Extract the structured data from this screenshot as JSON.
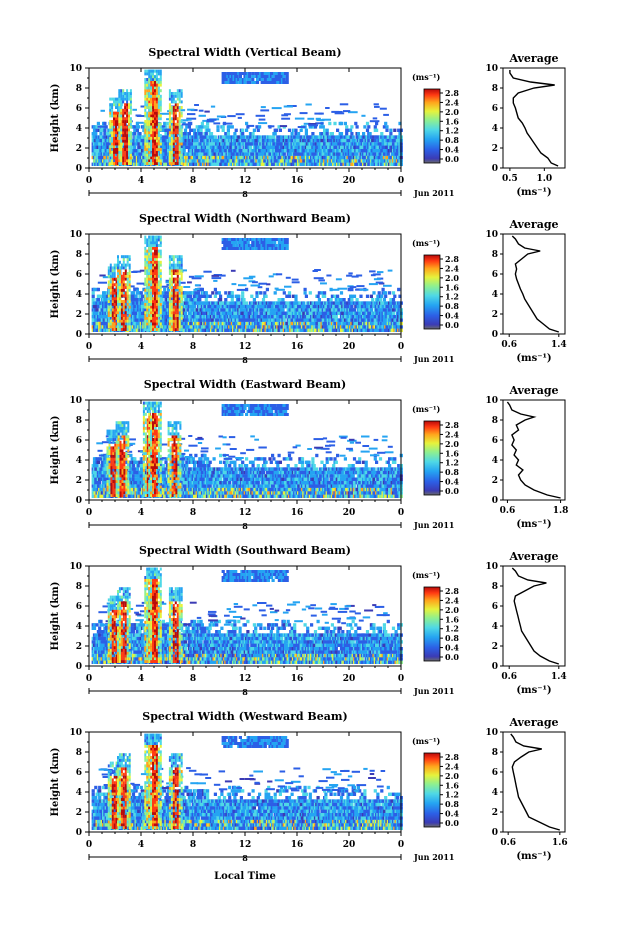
{
  "figure": {
    "common_xlabel": "Local Time",
    "date_label": "Jun 2011",
    "x_bar_label": "8",
    "colorbar_unit": "(ms⁻¹)",
    "colorbar_ticks": [
      "2.8",
      "2.4",
      "2.0",
      "1.6",
      "1.2",
      "0.8",
      "0.4",
      "0.0"
    ],
    "profile_title": "Average",
    "profile_xlabel": "(ms⁻¹)",
    "ylabel": "Height (km)"
  },
  "chart_data": [
    {
      "type": "heatmap",
      "title": "Spectral Width (Vertical Beam)",
      "xlabel": "Local Time",
      "ylabel": "Height (km)",
      "x_ticks": [
        "0",
        "4",
        "8",
        "12",
        "16",
        "20",
        "0"
      ],
      "y_ticks": [
        "0",
        "2",
        "4",
        "6",
        "8",
        "10"
      ],
      "xlim": [
        0,
        24
      ],
      "ylim": [
        0,
        10
      ],
      "zlim": [
        0.0,
        3.0
      ],
      "colorbar_label": "(ms⁻¹)",
      "colorbar_ticks": [
        0.0,
        0.4,
        0.8,
        1.2,
        1.6,
        2.0,
        2.4,
        2.8
      ],
      "convective_columns_hours": [
        2.0,
        2.7,
        4.7,
        5.0,
        6.6
      ],
      "profile": {
        "title": "Average",
        "xlabel": "(ms⁻¹)",
        "x_ticks": [
          "0.5",
          "1.0"
        ],
        "xlim": [
          0.4,
          1.3
        ],
        "height_km": [
          0.2,
          0.5,
          1.0,
          1.5,
          2.0,
          2.5,
          3.0,
          3.5,
          4.0,
          4.5,
          5.0,
          5.5,
          6.0,
          6.5,
          7.0,
          7.5,
          8.0,
          8.3,
          8.6,
          9.0,
          9.5,
          9.8
        ],
        "width": [
          1.2,
          1.1,
          1.05,
          0.95,
          0.9,
          0.85,
          0.8,
          0.75,
          0.72,
          0.68,
          0.62,
          0.6,
          0.58,
          0.55,
          0.55,
          0.62,
          0.85,
          1.15,
          0.8,
          0.55,
          0.5,
          0.5
        ]
      }
    },
    {
      "type": "heatmap",
      "title": "Spectral Width (Northward Beam)",
      "xlabel": "Local Time",
      "ylabel": "Height (km)",
      "x_ticks": [
        "0",
        "4",
        "8",
        "12",
        "16",
        "20",
        "0"
      ],
      "y_ticks": [
        "0",
        "2",
        "4",
        "6",
        "8",
        "10"
      ],
      "xlim": [
        0,
        24
      ],
      "ylim": [
        0,
        10
      ],
      "zlim": [
        0.0,
        3.0
      ],
      "colorbar_label": "(ms⁻¹)",
      "colorbar_ticks": [
        0.0,
        0.4,
        0.8,
        1.2,
        1.6,
        2.0,
        2.4,
        2.8
      ],
      "convective_columns_hours": [
        1.9,
        2.6,
        4.7,
        5.0,
        6.6
      ],
      "profile": {
        "title": "Average",
        "xlabel": "(ms⁻¹)",
        "x_ticks": [
          "0.6",
          "1.4"
        ],
        "xlim": [
          0.5,
          1.5
        ],
        "height_km": [
          0.2,
          0.5,
          1.0,
          1.5,
          2.0,
          2.5,
          3.0,
          3.5,
          4.0,
          4.5,
          5.0,
          5.5,
          6.0,
          6.5,
          7.0,
          7.5,
          8.0,
          8.3,
          8.6,
          9.0,
          9.5,
          9.8
        ],
        "width": [
          1.4,
          1.25,
          1.15,
          1.05,
          1.0,
          0.95,
          0.9,
          0.85,
          0.82,
          0.78,
          0.75,
          0.72,
          0.7,
          0.72,
          0.7,
          0.8,
          0.9,
          1.1,
          0.85,
          0.75,
          0.7,
          0.65
        ]
      }
    },
    {
      "type": "heatmap",
      "title": "Spectral Width (Eastward Beam)",
      "xlabel": "Local Time",
      "ylabel": "Height (km)",
      "x_ticks": [
        "0",
        "4",
        "8",
        "12",
        "16",
        "20",
        "0"
      ],
      "y_ticks": [
        "0",
        "2",
        "4",
        "6",
        "8",
        "10"
      ],
      "xlim": [
        0,
        24
      ],
      "ylim": [
        0,
        10
      ],
      "zlim": [
        0.0,
        3.0
      ],
      "colorbar_label": "(ms⁻¹)",
      "colorbar_ticks": [
        0.0,
        0.4,
        0.8,
        1.2,
        1.6,
        2.0,
        2.4,
        2.8
      ],
      "convective_columns_hours": [
        1.8,
        2.5,
        4.6,
        5.0,
        6.5
      ],
      "profile": {
        "title": "Average",
        "xlabel": "(ms⁻¹)",
        "x_ticks": [
          "0.6",
          "1.8"
        ],
        "xlim": [
          0.5,
          1.9
        ],
        "height_km": [
          0.2,
          0.5,
          1.0,
          1.5,
          2.0,
          2.5,
          3.0,
          3.5,
          4.0,
          4.5,
          5.0,
          5.5,
          6.0,
          6.5,
          7.0,
          7.5,
          8.0,
          8.3,
          8.6,
          9.0,
          9.5,
          9.8
        ],
        "width": [
          1.8,
          1.5,
          1.2,
          1.0,
          0.9,
          0.85,
          0.95,
          0.8,
          0.85,
          0.75,
          0.8,
          0.7,
          0.75,
          0.7,
          0.85,
          0.8,
          1.0,
          1.2,
          0.9,
          0.7,
          0.65,
          0.6
        ]
      }
    },
    {
      "type": "heatmap",
      "title": "Spectral Width (Southward Beam)",
      "xlabel": "Local Time",
      "ylabel": "Height (km)",
      "x_ticks": [
        "0",
        "4",
        "8",
        "12",
        "16",
        "20",
        "0"
      ],
      "y_ticks": [
        "0",
        "2",
        "4",
        "6",
        "8",
        "10"
      ],
      "xlim": [
        0,
        24
      ],
      "ylim": [
        0,
        10
      ],
      "zlim": [
        0.0,
        3.0
      ],
      "colorbar_label": "(ms⁻¹)",
      "colorbar_ticks": [
        0.0,
        0.4,
        0.8,
        1.2,
        1.6,
        2.0,
        2.4,
        2.8
      ],
      "convective_columns_hours": [
        1.9,
        2.6,
        4.7,
        5.0,
        6.6
      ],
      "profile": {
        "title": "Average",
        "xlabel": "(ms⁻¹)",
        "x_ticks": [
          "0.6",
          "1.4"
        ],
        "xlim": [
          0.5,
          1.5
        ],
        "height_km": [
          0.2,
          0.5,
          1.0,
          1.5,
          2.0,
          2.5,
          3.0,
          3.5,
          4.0,
          4.5,
          5.0,
          5.5,
          6.0,
          6.5,
          7.0,
          7.5,
          8.0,
          8.3,
          8.6,
          9.0,
          9.5,
          9.8
        ],
        "width": [
          1.4,
          1.25,
          1.1,
          1.0,
          0.95,
          0.9,
          0.85,
          0.8,
          0.78,
          0.76,
          0.74,
          0.72,
          0.7,
          0.68,
          0.7,
          0.85,
          1.0,
          1.2,
          0.9,
          0.75,
          0.7,
          0.65
        ]
      }
    },
    {
      "type": "heatmap",
      "title": "Spectral Width (Westward Beam)",
      "xlabel": "Local Time",
      "ylabel": "Height (km)",
      "x_ticks": [
        "0",
        "4",
        "8",
        "12",
        "16",
        "20",
        "0"
      ],
      "y_ticks": [
        "0",
        "2",
        "4",
        "6",
        "8",
        "10"
      ],
      "xlim": [
        0,
        24
      ],
      "ylim": [
        0,
        10
      ],
      "zlim": [
        0.0,
        3.0
      ],
      "colorbar_label": "(ms⁻¹)",
      "colorbar_ticks": [
        0.0,
        0.4,
        0.8,
        1.2,
        1.6,
        2.0,
        2.4,
        2.8
      ],
      "convective_columns_hours": [
        1.9,
        2.6,
        4.7,
        5.0,
        6.6
      ],
      "profile": {
        "title": "Average",
        "xlabel": "(ms⁻¹)",
        "x_ticks": [
          "0.6",
          "1.6"
        ],
        "xlim": [
          0.5,
          1.7
        ],
        "height_km": [
          0.2,
          0.5,
          1.0,
          1.5,
          2.0,
          2.5,
          3.0,
          3.5,
          4.0,
          4.5,
          5.0,
          5.5,
          6.0,
          6.5,
          7.0,
          7.5,
          8.0,
          8.3,
          8.6,
          9.0,
          9.5,
          9.8
        ],
        "width": [
          1.6,
          1.4,
          1.2,
          1.0,
          0.95,
          0.9,
          0.85,
          0.8,
          0.78,
          0.76,
          0.74,
          0.72,
          0.7,
          0.68,
          0.72,
          0.85,
          1.0,
          1.25,
          0.9,
          0.75,
          0.7,
          0.65
        ]
      }
    }
  ]
}
